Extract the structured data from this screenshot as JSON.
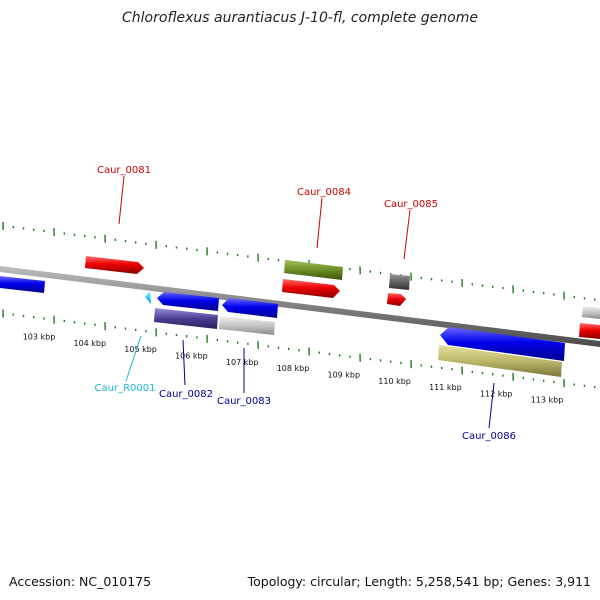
{
  "title": "Chloroflexus aurantiacus J-10-fl, complete genome",
  "footer": {
    "accession": "Accession: NC_010175",
    "summary": "Topology: circular; Length: 5,258,541 bp; Genes: 3,911"
  },
  "colors": {
    "backbone": "#7f7f7f",
    "tick": "#1f7a1f",
    "label_red": "#cc0000",
    "label_blue": "#00008b",
    "label_cyan": "#1fb6d6"
  },
  "kbp_labels": [
    "103 kbp",
    "104 kbp",
    "105 kbp",
    "106 kbp",
    "107 kbp",
    "108 kbp",
    "109 kbp",
    "110 kbp",
    "111 kbp",
    "112 kbp",
    "113 kbp"
  ],
  "gene_labels": {
    "caur_0081": "Caur_0081",
    "caur_0084": "Caur_0084",
    "caur_0085": "Caur_0085",
    "caur_r0001": "Caur_R0001",
    "caur_0082": "Caur_0082",
    "caur_0083": "Caur_0083",
    "caur_0086": "Caur_0086"
  }
}
